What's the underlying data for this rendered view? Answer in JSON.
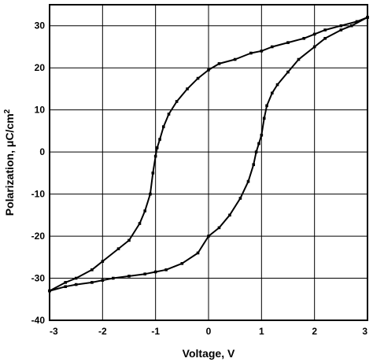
{
  "chart_data": {
    "type": "line",
    "title": "",
    "xlabel": "Voltage, V",
    "ylabel": "Polarization, μC/cm²",
    "xlim": [
      -3,
      3
    ],
    "ylim": [
      -40,
      35
    ],
    "x_ticks": [
      "-3",
      "-2",
      "-1",
      "0",
      "1",
      "2",
      "3"
    ],
    "y_ticks": [
      "30",
      "20",
      "10",
      "0",
      "-10",
      "-20",
      "-30",
      "-40"
    ],
    "grid": true,
    "legend": "none",
    "series": [
      {
        "branch": "descending",
        "x": [
          3.0,
          2.8,
          2.5,
          2.2,
          2.0,
          1.8,
          1.5,
          1.2,
          1.0,
          0.8,
          0.5,
          0.2,
          0.0,
          -0.2,
          -0.4,
          -0.6,
          -0.75,
          -0.85,
          -0.92,
          -0.97,
          -1.0,
          -1.05,
          -1.1,
          -1.2,
          -1.3,
          -1.5,
          -1.7,
          -2.0,
          -2.2,
          -2.5,
          -2.7,
          -3.0
        ],
        "y": [
          32,
          31,
          30,
          29,
          28,
          27,
          26,
          25,
          24,
          23.5,
          22,
          21,
          19.5,
          17.5,
          15,
          12,
          9,
          6,
          3,
          1,
          -1,
          -5,
          -10,
          -14,
          -17,
          -21,
          -23,
          -26,
          -28,
          -30,
          -31,
          -33
        ]
      },
      {
        "branch": "ascending",
        "x": [
          -3.0,
          -2.7,
          -2.5,
          -2.2,
          -2.0,
          -1.8,
          -1.5,
          -1.2,
          -1.0,
          -0.8,
          -0.5,
          -0.2,
          0.0,
          0.2,
          0.4,
          0.6,
          0.75,
          0.85,
          0.9,
          0.95,
          1.0,
          1.05,
          1.1,
          1.2,
          1.3,
          1.5,
          1.7,
          2.0,
          2.2,
          2.5,
          2.7,
          3.0
        ],
        "y": [
          -33,
          -32,
          -31.5,
          -31,
          -30.5,
          -30,
          -29.5,
          -29,
          -28.5,
          -28,
          -26.5,
          -24,
          -20,
          -18,
          -15,
          -11,
          -7,
          -3,
          0,
          2,
          4,
          8,
          11,
          14,
          16,
          19,
          22,
          25,
          27,
          29,
          30,
          32
        ]
      }
    ]
  }
}
